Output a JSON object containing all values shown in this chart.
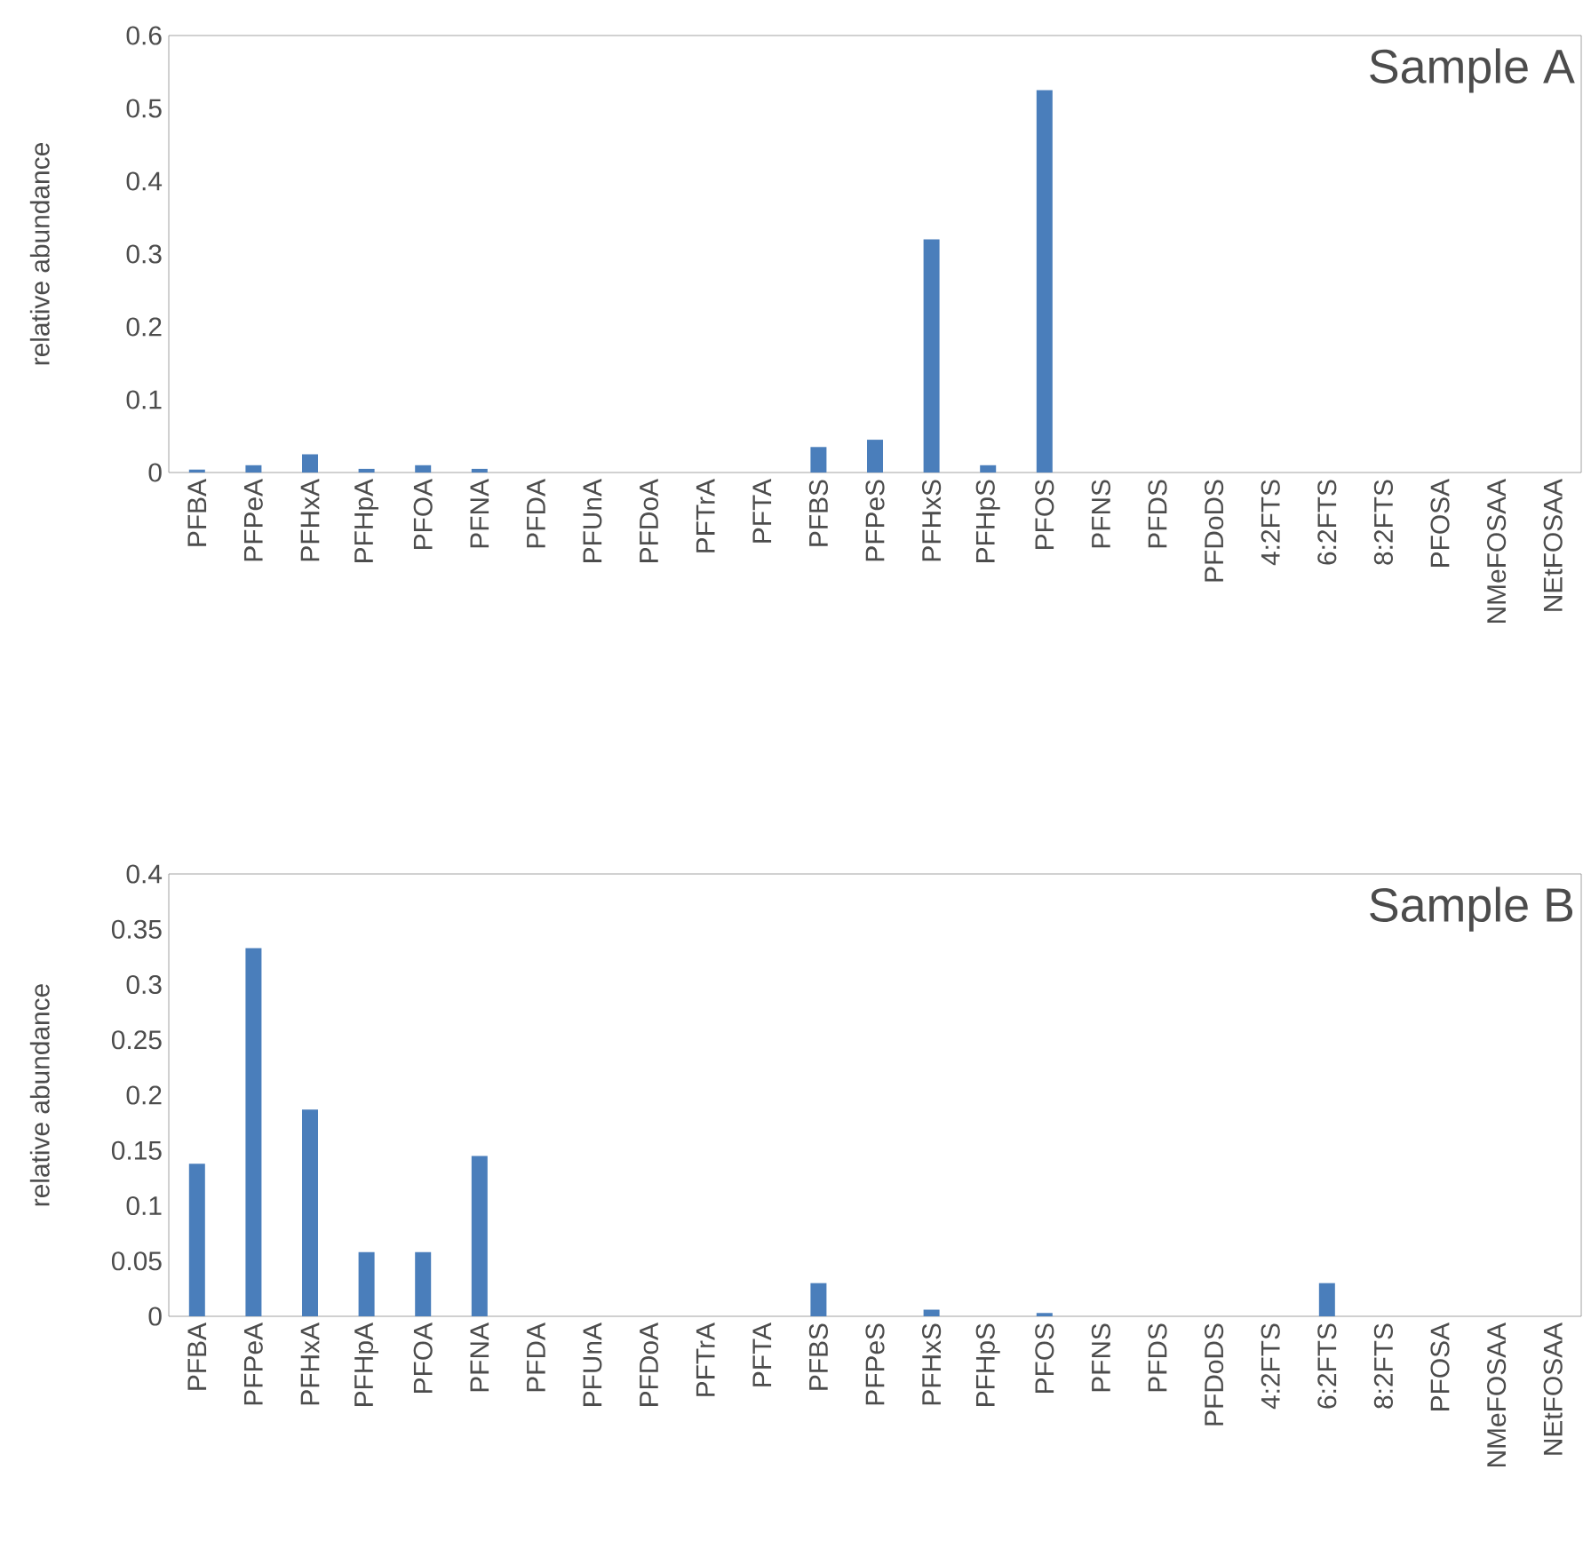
{
  "chart_data": [
    {
      "type": "bar",
      "ylabel": "relative abundance",
      "annotations": [
        "Sample A"
      ],
      "color": "#4a7ebb",
      "categories": [
        "PFBA",
        "PFPeA",
        "PFHxA",
        "PFHpA",
        "PFOA",
        "PFNA",
        "PFDA",
        "PFUnA",
        "PFDoA",
        "PFTrA",
        "PFTA",
        "PFBS",
        "PFPeS",
        "PFHxS",
        "PFHpS",
        "PFOS",
        "PFNS",
        "PFDS",
        "PFDoDS",
        "4:2FTS",
        "6:2FTS",
        "8:2FTS",
        "PFOSA",
        "NMeFOSAA",
        "NEtFOSAA"
      ],
      "values": [
        0.004,
        0.01,
        0.025,
        0.005,
        0.01,
        0.005,
        0,
        0,
        0,
        0,
        0,
        0.035,
        0.045,
        0.32,
        0.01,
        0.525,
        0,
        0,
        0,
        0,
        0,
        0,
        0,
        0,
        0
      ],
      "ylim": [
        0,
        0.6
      ],
      "yticks": [
        0,
        0.1,
        0.2,
        0.3,
        0.4,
        0.5,
        0.6
      ],
      "grid": false
    },
    {
      "type": "bar",
      "ylabel": "relative abundance",
      "annotations": [
        "Sample B"
      ],
      "color": "#4a7ebb",
      "categories": [
        "PFBA",
        "PFPeA",
        "PFHxA",
        "PFHpA",
        "PFOA",
        "PFNA",
        "PFDA",
        "PFUnA",
        "PFDoA",
        "PFTrA",
        "PFTA",
        "PFBS",
        "PFPeS",
        "PFHxS",
        "PFHpS",
        "PFOS",
        "PFNS",
        "PFDS",
        "PFDoDS",
        "4:2FTS",
        "6:2FTS",
        "8:2FTS",
        "PFOSA",
        "NMeFOSAA",
        "NEtFOSAA"
      ],
      "values": [
        0.138,
        0.333,
        0.187,
        0.058,
        0.058,
        0.145,
        0,
        0,
        0,
        0,
        0,
        0.03,
        0,
        0.006,
        0,
        0.003,
        0,
        0,
        0,
        0,
        0.03,
        0,
        0,
        0,
        0
      ],
      "ylim": [
        0,
        0.4
      ],
      "yticks": [
        0,
        0.05,
        0.1,
        0.15,
        0.2,
        0.25,
        0.3,
        0.35,
        0.4
      ],
      "grid": false
    }
  ]
}
